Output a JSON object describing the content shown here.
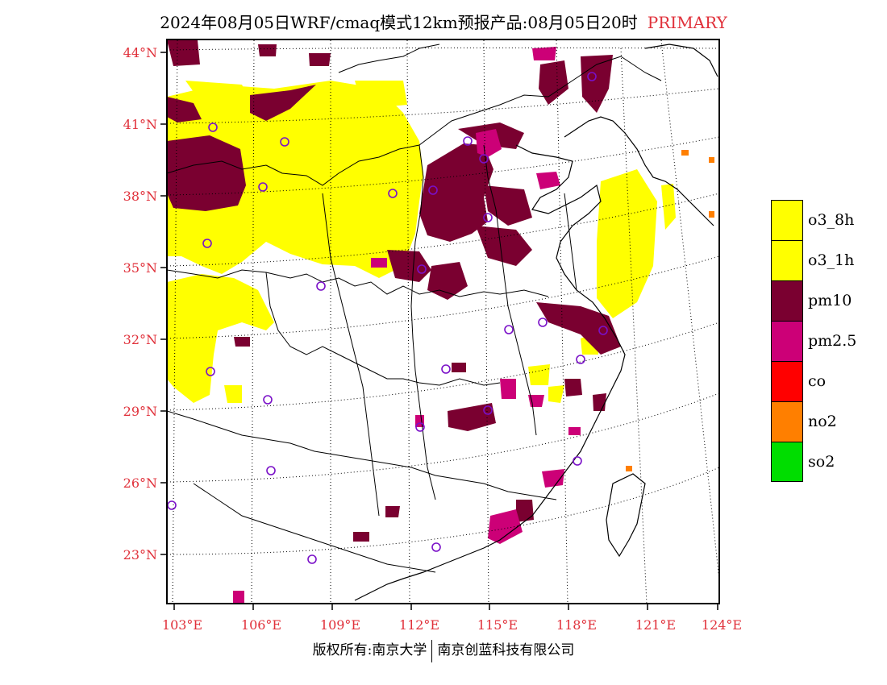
{
  "title": {
    "main": "2024年08月05日WRF/cmaq模式12km预报产品:08月05日20时",
    "tag": "PRIMARY",
    "tag_color": "#e0303a"
  },
  "map": {
    "lat_labels": [
      "44°N",
      "41°N",
      "38°N",
      "35°N",
      "32°N",
      "29°N",
      "26°N",
      "23°N"
    ],
    "lon_labels": [
      "103°E",
      "106°E",
      "109°E",
      "112°E",
      "115°E",
      "118°E",
      "121°E",
      "124°E"
    ],
    "label_color": "#e0303a",
    "station_marker": "purple-circle-icon",
    "station_color": "#7a10c8"
  },
  "legend": [
    {
      "label": "o3_8h",
      "color": "#ffff00"
    },
    {
      "label": "o3_1h",
      "color": "#ffff00"
    },
    {
      "label": "pm10",
      "color": "#7a0030"
    },
    {
      "label": "pm2.5",
      "color": "#cc0077"
    },
    {
      "label": "co",
      "color": "#ff0000"
    },
    {
      "label": "no2",
      "color": "#ff7f00"
    },
    {
      "label": "so2",
      "color": "#00dd00"
    }
  ],
  "footer": {
    "left": "版权所有:南京大学",
    "right": "南京创蓝科技有限公司"
  }
}
